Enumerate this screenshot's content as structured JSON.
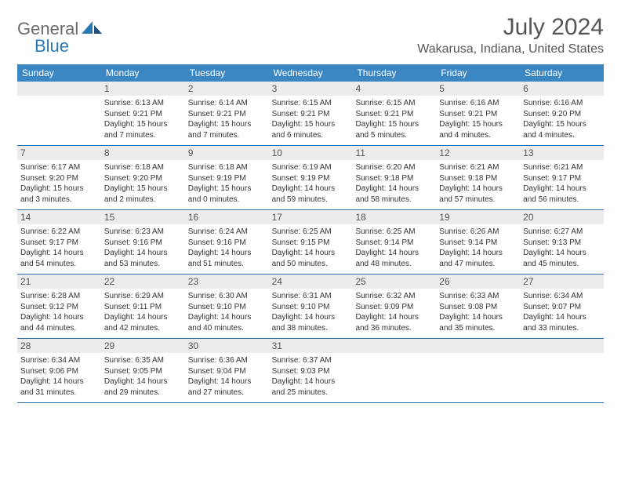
{
  "brand": {
    "general": "General",
    "blue": "Blue"
  },
  "title": "July 2024",
  "location": "Wakarusa, Indiana, United States",
  "styling": {
    "header_bg": "#3b87c4",
    "header_fg": "#ffffff",
    "daynum_bg": "#ececec",
    "daynum_fg": "#555555",
    "row_border": "#2b6fa8",
    "body_fg": "#333333",
    "title_fg": "#555555",
    "brand_general_fg": "#6b6b6b",
    "brand_blue_fg": "#2b78b5",
    "background": "#ffffff",
    "title_fontsize": 30,
    "location_fontsize": 16,
    "header_fontsize": 12,
    "daynum_fontsize": 12,
    "info_fontsize": 10
  },
  "weekdays": [
    "Sunday",
    "Monday",
    "Tuesday",
    "Wednesday",
    "Thursday",
    "Friday",
    "Saturday"
  ],
  "weeks": [
    [
      {
        "n": "",
        "sr": "",
        "ss": "",
        "d1": "",
        "d2": ""
      },
      {
        "n": "1",
        "sr": "Sunrise: 6:13 AM",
        "ss": "Sunset: 9:21 PM",
        "d1": "Daylight: 15 hours",
        "d2": "and 7 minutes."
      },
      {
        "n": "2",
        "sr": "Sunrise: 6:14 AM",
        "ss": "Sunset: 9:21 PM",
        "d1": "Daylight: 15 hours",
        "d2": "and 7 minutes."
      },
      {
        "n": "3",
        "sr": "Sunrise: 6:15 AM",
        "ss": "Sunset: 9:21 PM",
        "d1": "Daylight: 15 hours",
        "d2": "and 6 minutes."
      },
      {
        "n": "4",
        "sr": "Sunrise: 6:15 AM",
        "ss": "Sunset: 9:21 PM",
        "d1": "Daylight: 15 hours",
        "d2": "and 5 minutes."
      },
      {
        "n": "5",
        "sr": "Sunrise: 6:16 AM",
        "ss": "Sunset: 9:21 PM",
        "d1": "Daylight: 15 hours",
        "d2": "and 4 minutes."
      },
      {
        "n": "6",
        "sr": "Sunrise: 6:16 AM",
        "ss": "Sunset: 9:20 PM",
        "d1": "Daylight: 15 hours",
        "d2": "and 4 minutes."
      }
    ],
    [
      {
        "n": "7",
        "sr": "Sunrise: 6:17 AM",
        "ss": "Sunset: 9:20 PM",
        "d1": "Daylight: 15 hours",
        "d2": "and 3 minutes."
      },
      {
        "n": "8",
        "sr": "Sunrise: 6:18 AM",
        "ss": "Sunset: 9:20 PM",
        "d1": "Daylight: 15 hours",
        "d2": "and 2 minutes."
      },
      {
        "n": "9",
        "sr": "Sunrise: 6:18 AM",
        "ss": "Sunset: 9:19 PM",
        "d1": "Daylight: 15 hours",
        "d2": "and 0 minutes."
      },
      {
        "n": "10",
        "sr": "Sunrise: 6:19 AM",
        "ss": "Sunset: 9:19 PM",
        "d1": "Daylight: 14 hours",
        "d2": "and 59 minutes."
      },
      {
        "n": "11",
        "sr": "Sunrise: 6:20 AM",
        "ss": "Sunset: 9:18 PM",
        "d1": "Daylight: 14 hours",
        "d2": "and 58 minutes."
      },
      {
        "n": "12",
        "sr": "Sunrise: 6:21 AM",
        "ss": "Sunset: 9:18 PM",
        "d1": "Daylight: 14 hours",
        "d2": "and 57 minutes."
      },
      {
        "n": "13",
        "sr": "Sunrise: 6:21 AM",
        "ss": "Sunset: 9:17 PM",
        "d1": "Daylight: 14 hours",
        "d2": "and 56 minutes."
      }
    ],
    [
      {
        "n": "14",
        "sr": "Sunrise: 6:22 AM",
        "ss": "Sunset: 9:17 PM",
        "d1": "Daylight: 14 hours",
        "d2": "and 54 minutes."
      },
      {
        "n": "15",
        "sr": "Sunrise: 6:23 AM",
        "ss": "Sunset: 9:16 PM",
        "d1": "Daylight: 14 hours",
        "d2": "and 53 minutes."
      },
      {
        "n": "16",
        "sr": "Sunrise: 6:24 AM",
        "ss": "Sunset: 9:16 PM",
        "d1": "Daylight: 14 hours",
        "d2": "and 51 minutes."
      },
      {
        "n": "17",
        "sr": "Sunrise: 6:25 AM",
        "ss": "Sunset: 9:15 PM",
        "d1": "Daylight: 14 hours",
        "d2": "and 50 minutes."
      },
      {
        "n": "18",
        "sr": "Sunrise: 6:25 AM",
        "ss": "Sunset: 9:14 PM",
        "d1": "Daylight: 14 hours",
        "d2": "and 48 minutes."
      },
      {
        "n": "19",
        "sr": "Sunrise: 6:26 AM",
        "ss": "Sunset: 9:14 PM",
        "d1": "Daylight: 14 hours",
        "d2": "and 47 minutes."
      },
      {
        "n": "20",
        "sr": "Sunrise: 6:27 AM",
        "ss": "Sunset: 9:13 PM",
        "d1": "Daylight: 14 hours",
        "d2": "and 45 minutes."
      }
    ],
    [
      {
        "n": "21",
        "sr": "Sunrise: 6:28 AM",
        "ss": "Sunset: 9:12 PM",
        "d1": "Daylight: 14 hours",
        "d2": "and 44 minutes."
      },
      {
        "n": "22",
        "sr": "Sunrise: 6:29 AM",
        "ss": "Sunset: 9:11 PM",
        "d1": "Daylight: 14 hours",
        "d2": "and 42 minutes."
      },
      {
        "n": "23",
        "sr": "Sunrise: 6:30 AM",
        "ss": "Sunset: 9:10 PM",
        "d1": "Daylight: 14 hours",
        "d2": "and 40 minutes."
      },
      {
        "n": "24",
        "sr": "Sunrise: 6:31 AM",
        "ss": "Sunset: 9:10 PM",
        "d1": "Daylight: 14 hours",
        "d2": "and 38 minutes."
      },
      {
        "n": "25",
        "sr": "Sunrise: 6:32 AM",
        "ss": "Sunset: 9:09 PM",
        "d1": "Daylight: 14 hours",
        "d2": "and 36 minutes."
      },
      {
        "n": "26",
        "sr": "Sunrise: 6:33 AM",
        "ss": "Sunset: 9:08 PM",
        "d1": "Daylight: 14 hours",
        "d2": "and 35 minutes."
      },
      {
        "n": "27",
        "sr": "Sunrise: 6:34 AM",
        "ss": "Sunset: 9:07 PM",
        "d1": "Daylight: 14 hours",
        "d2": "and 33 minutes."
      }
    ],
    [
      {
        "n": "28",
        "sr": "Sunrise: 6:34 AM",
        "ss": "Sunset: 9:06 PM",
        "d1": "Daylight: 14 hours",
        "d2": "and 31 minutes."
      },
      {
        "n": "29",
        "sr": "Sunrise: 6:35 AM",
        "ss": "Sunset: 9:05 PM",
        "d1": "Daylight: 14 hours",
        "d2": "and 29 minutes."
      },
      {
        "n": "30",
        "sr": "Sunrise: 6:36 AM",
        "ss": "Sunset: 9:04 PM",
        "d1": "Daylight: 14 hours",
        "d2": "and 27 minutes."
      },
      {
        "n": "31",
        "sr": "Sunrise: 6:37 AM",
        "ss": "Sunset: 9:03 PM",
        "d1": "Daylight: 14 hours",
        "d2": "and 25 minutes."
      },
      {
        "n": "",
        "sr": "",
        "ss": "",
        "d1": "",
        "d2": ""
      },
      {
        "n": "",
        "sr": "",
        "ss": "",
        "d1": "",
        "d2": ""
      },
      {
        "n": "",
        "sr": "",
        "ss": "",
        "d1": "",
        "d2": ""
      }
    ]
  ]
}
